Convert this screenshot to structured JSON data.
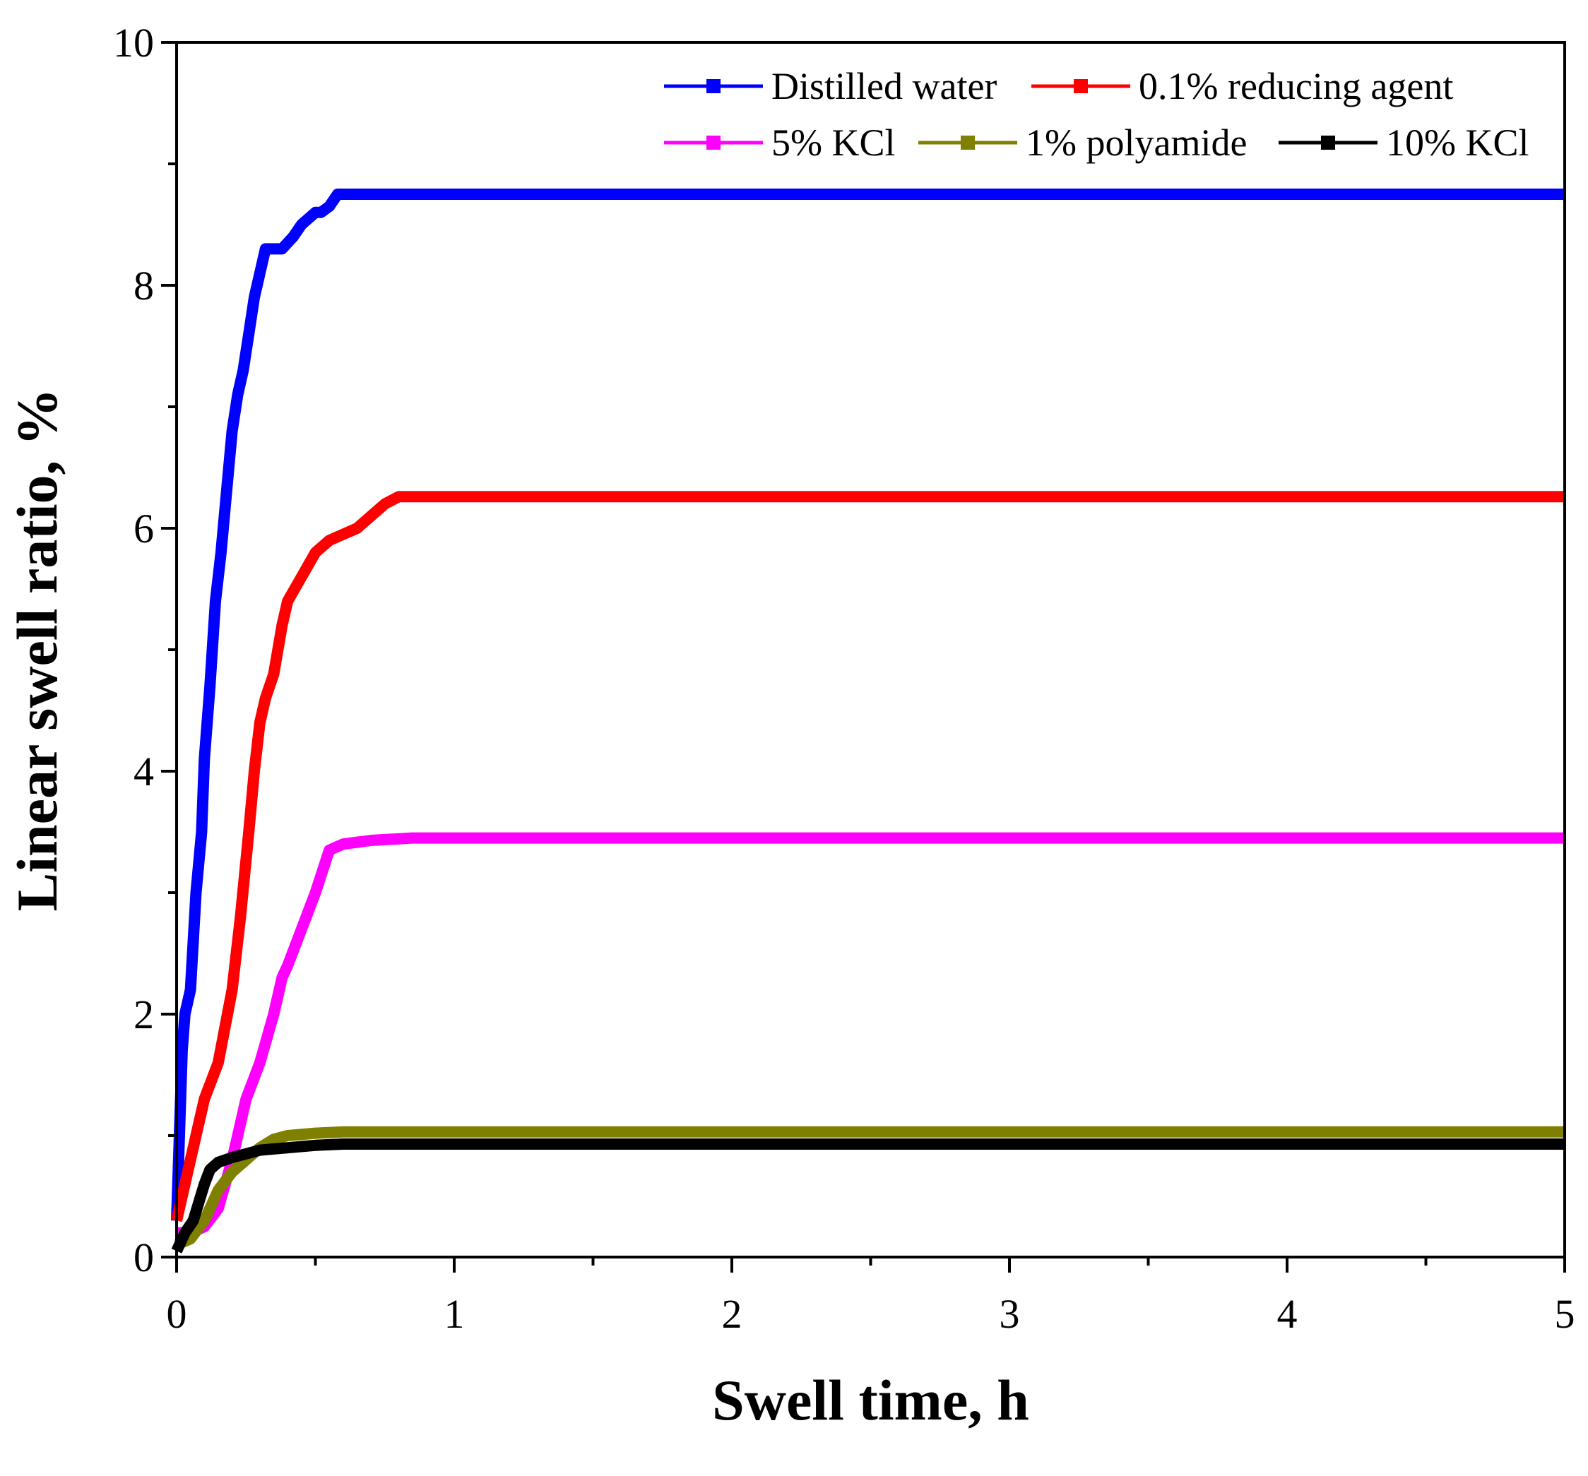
{
  "chart_data": {
    "type": "line",
    "title": "",
    "xlabel": "Swell time, h",
    "ylabel": "Linear swell ratio, %",
    "xlim": [
      0,
      5
    ],
    "ylim": [
      0,
      10
    ],
    "xticks": [
      "0",
      "1",
      "2",
      "3",
      "4",
      "5"
    ],
    "yticks": [
      "0",
      "2",
      "4",
      "6",
      "8",
      "10"
    ],
    "grid": false,
    "legend_position": "top-right",
    "series": [
      {
        "name": "Distilled water",
        "color": "#0000ff",
        "x": [
          0,
          0.02,
          0.03,
          0.05,
          0.07,
          0.09,
          0.1,
          0.12,
          0.14,
          0.16,
          0.18,
          0.2,
          0.22,
          0.24,
          0.26,
          0.28,
          0.3,
          0.32,
          0.35,
          0.38,
          0.42,
          0.45,
          0.5,
          0.52,
          0.55,
          0.58,
          0.7,
          1.0,
          5.0
        ],
        "values": [
          0.3,
          1.7,
          2.0,
          2.2,
          3.0,
          3.5,
          4.1,
          4.7,
          5.4,
          5.8,
          6.3,
          6.8,
          7.1,
          7.3,
          7.6,
          7.9,
          8.1,
          8.3,
          8.3,
          8.3,
          8.4,
          8.5,
          8.6,
          8.6,
          8.65,
          8.75,
          8.75,
          8.75,
          8.75
        ]
      },
      {
        "name": "0.1% reducing agent",
        "color": "#ff0000",
        "x": [
          0,
          0.05,
          0.1,
          0.15,
          0.2,
          0.23,
          0.26,
          0.28,
          0.3,
          0.32,
          0.35,
          0.38,
          0.4,
          0.45,
          0.5,
          0.55,
          0.6,
          0.65,
          0.7,
          0.75,
          0.8,
          0.85,
          1.0,
          5.0
        ],
        "values": [
          0.3,
          0.8,
          1.3,
          1.6,
          2.2,
          2.8,
          3.5,
          4.0,
          4.4,
          4.6,
          4.8,
          5.2,
          5.4,
          5.6,
          5.8,
          5.9,
          5.95,
          6.0,
          6.1,
          6.2,
          6.26,
          6.26,
          6.26,
          6.26
        ]
      },
      {
        "name": "5% KCl",
        "color": "#ff00ff",
        "x": [
          0,
          0.05,
          0.1,
          0.15,
          0.2,
          0.25,
          0.3,
          0.35,
          0.38,
          0.4,
          0.45,
          0.5,
          0.55,
          0.6,
          0.7,
          0.85,
          1.0,
          5.0
        ],
        "values": [
          0.2,
          0.2,
          0.25,
          0.4,
          0.8,
          1.3,
          1.6,
          2.0,
          2.3,
          2.4,
          2.7,
          3.0,
          3.35,
          3.4,
          3.43,
          3.45,
          3.45,
          3.45
        ]
      },
      {
        "name": "1% polyamide",
        "color": "#808000",
        "x": [
          0,
          0.05,
          0.1,
          0.15,
          0.2,
          0.25,
          0.3,
          0.35,
          0.4,
          0.5,
          0.6,
          1.0,
          5.0
        ],
        "values": [
          0.1,
          0.15,
          0.3,
          0.55,
          0.7,
          0.8,
          0.9,
          0.97,
          1.0,
          1.02,
          1.03,
          1.03,
          1.03
        ]
      },
      {
        "name": "10% KCl",
        "color": "#000000",
        "x": [
          0,
          0.03,
          0.06,
          0.08,
          0.1,
          0.12,
          0.15,
          0.2,
          0.25,
          0.3,
          0.4,
          0.5,
          0.6,
          1.0,
          5.0
        ],
        "values": [
          0.05,
          0.2,
          0.3,
          0.45,
          0.6,
          0.72,
          0.78,
          0.82,
          0.85,
          0.88,
          0.9,
          0.92,
          0.93,
          0.93,
          0.93
        ]
      }
    ]
  }
}
